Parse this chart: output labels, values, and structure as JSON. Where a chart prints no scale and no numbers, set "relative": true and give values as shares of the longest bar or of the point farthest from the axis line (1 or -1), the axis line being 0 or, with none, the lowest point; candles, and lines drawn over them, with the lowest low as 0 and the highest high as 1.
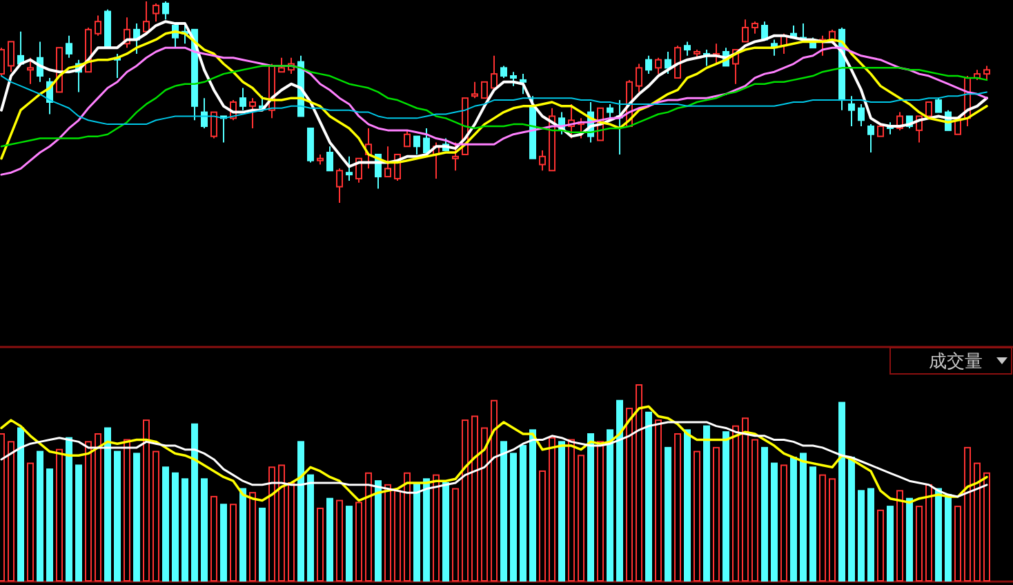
{
  "chart_data": [
    {
      "type": "candlestick",
      "relative": true,
      "categories": [
        null,
        null,
        null,
        null,
        null,
        null,
        null,
        null,
        null,
        null,
        null,
        null,
        null,
        null,
        null,
        null,
        null,
        null,
        null,
        null,
        null,
        null,
        null,
        null,
        null,
        null,
        null,
        null,
        null,
        null,
        null,
        null,
        null,
        null,
        null,
        null,
        null,
        null,
        null,
        null,
        null,
        null,
        null,
        null,
        null,
        null,
        null,
        null,
        null,
        null,
        null,
        null,
        null,
        null,
        null,
        null,
        null,
        null,
        null,
        null,
        null,
        null,
        null,
        null,
        null,
        null,
        null,
        null,
        null,
        null,
        null,
        null,
        null,
        null,
        null,
        null,
        null,
        null,
        null,
        null,
        null,
        null,
        null,
        null,
        null,
        null,
        null,
        null,
        null,
        null,
        null,
        null,
        null,
        null,
        null,
        null,
        null,
        null,
        null,
        null,
        null,
        null,
        null
      ],
      "ohlc": [
        [
          0.64,
          0.77,
          0.63,
          0.76
        ],
        [
          0.68,
          0.8,
          0.65,
          0.8
        ],
        [
          0.73,
          0.85,
          0.69,
          0.69
        ],
        [
          0.66,
          0.72,
          0.59,
          0.67
        ],
        [
          0.72,
          0.8,
          0.6,
          0.63
        ],
        [
          0.6,
          0.62,
          0.44,
          0.5
        ],
        [
          0.55,
          0.77,
          0.55,
          0.77
        ],
        [
          0.79,
          0.83,
          0.72,
          0.74
        ],
        [
          0.69,
          0.71,
          0.55,
          0.65
        ],
        [
          0.65,
          0.87,
          0.65,
          0.86
        ],
        [
          0.84,
          0.93,
          0.83,
          0.9
        ],
        [
          0.95,
          0.96,
          0.77,
          0.77
        ],
        [
          0.72,
          0.74,
          0.62,
          0.71
        ],
        [
          0.79,
          0.92,
          0.77,
          0.86
        ],
        [
          0.86,
          0.89,
          0.74,
          0.81
        ],
        [
          0.85,
          1.0,
          0.85,
          0.9
        ],
        [
          0.94,
          0.99,
          0.9,
          0.98
        ],
        [
          0.99,
          1.0,
          0.91,
          0.94
        ],
        [
          0.88,
          0.89,
          0.77,
          0.82
        ],
        [
          0.85,
          0.89,
          0.79,
          0.84
        ],
        [
          0.86,
          0.86,
          0.41,
          0.48
        ],
        [
          0.45,
          0.52,
          0.37,
          0.38
        ],
        [
          0.33,
          0.45,
          0.32,
          0.45
        ],
        [
          0.43,
          0.43,
          0.3,
          0.42
        ],
        [
          0.42,
          0.51,
          0.41,
          0.5
        ],
        [
          0.52,
          0.57,
          0.46,
          0.48
        ],
        [
          0.48,
          0.52,
          0.37,
          0.5
        ],
        [
          0.48,
          0.53,
          0.46,
          0.47
        ],
        [
          0.46,
          0.69,
          0.42,
          0.68
        ],
        [
          0.65,
          0.72,
          0.65,
          0.67
        ],
        [
          0.66,
          0.72,
          0.64,
          0.69
        ],
        [
          0.7,
          0.73,
          0.43,
          0.43
        ],
        [
          0.37,
          0.37,
          0.2,
          0.21
        ],
        [
          0.21,
          0.24,
          0.19,
          0.22
        ],
        [
          0.25,
          0.28,
          0.16,
          0.16
        ],
        [
          0.08,
          0.17,
          0.0,
          0.16
        ],
        [
          0.15,
          0.23,
          0.11,
          0.14
        ],
        [
          0.12,
          0.22,
          0.1,
          0.22
        ],
        [
          0.24,
          0.37,
          0.17,
          0.29
        ],
        [
          0.24,
          0.24,
          0.07,
          0.13
        ],
        [
          0.13,
          0.28,
          0.13,
          0.17
        ],
        [
          0.12,
          0.24,
          0.11,
          0.24
        ],
        [
          0.28,
          0.36,
          0.28,
          0.34
        ],
        [
          0.33,
          0.33,
          0.24,
          0.28
        ],
        [
          0.32,
          0.37,
          0.25,
          0.25
        ],
        [
          0.24,
          0.3,
          0.12,
          0.28
        ],
        [
          0.29,
          0.32,
          0.26,
          0.26
        ],
        [
          0.22,
          0.3,
          0.16,
          0.23
        ],
        [
          0.24,
          0.52,
          0.24,
          0.52
        ],
        [
          0.53,
          0.6,
          0.52,
          0.54
        ],
        [
          0.52,
          0.6,
          0.52,
          0.6
        ],
        [
          0.57,
          0.73,
          0.57,
          0.64
        ],
        [
          0.67,
          0.68,
          0.62,
          0.63
        ],
        [
          0.63,
          0.65,
          0.58,
          0.62
        ],
        [
          0.61,
          0.64,
          0.54,
          0.6
        ],
        [
          0.48,
          0.53,
          0.22,
          0.22
        ],
        [
          0.19,
          0.26,
          0.16,
          0.23
        ],
        [
          0.16,
          0.47,
          0.16,
          0.43
        ],
        [
          0.42,
          0.45,
          0.34,
          0.36
        ],
        [
          0.38,
          0.49,
          0.32,
          0.41
        ],
        [
          0.39,
          0.42,
          0.32,
          0.4
        ],
        [
          0.45,
          0.5,
          0.3,
          0.33
        ],
        [
          0.31,
          0.47,
          0.31,
          0.47
        ],
        [
          0.47,
          0.49,
          0.42,
          0.45
        ],
        [
          0.43,
          0.51,
          0.24,
          0.43
        ],
        [
          0.38,
          0.61,
          0.38,
          0.6
        ],
        [
          0.58,
          0.69,
          0.55,
          0.67
        ],
        [
          0.71,
          0.73,
          0.64,
          0.66
        ],
        [
          0.67,
          0.72,
          0.64,
          0.71
        ],
        [
          0.71,
          0.75,
          0.64,
          0.67
        ],
        [
          0.62,
          0.78,
          0.62,
          0.77
        ],
        [
          0.78,
          0.8,
          0.73,
          0.76
        ],
        [
          0.74,
          0.76,
          0.72,
          0.75
        ],
        [
          0.74,
          0.76,
          0.68,
          0.73
        ],
        [
          0.73,
          0.79,
          0.69,
          0.74
        ],
        [
          0.75,
          0.77,
          0.68,
          0.68
        ],
        [
          0.69,
          0.76,
          0.59,
          0.76
        ],
        [
          0.8,
          0.91,
          0.8,
          0.87
        ],
        [
          0.87,
          0.9,
          0.84,
          0.89
        ],
        [
          0.88,
          0.9,
          0.81,
          0.81
        ],
        [
          0.79,
          0.81,
          0.73,
          0.77
        ],
        [
          0.78,
          0.84,
          0.74,
          0.83
        ],
        [
          0.84,
          0.88,
          0.82,
          0.82
        ],
        [
          0.82,
          0.89,
          0.8,
          0.81
        ],
        [
          0.8,
          0.82,
          0.77,
          0.77
        ],
        [
          0.8,
          0.83,
          0.73,
          0.81
        ],
        [
          0.8,
          0.86,
          0.79,
          0.85
        ],
        [
          0.86,
          0.87,
          0.46,
          0.51
        ],
        [
          0.49,
          0.53,
          0.38,
          0.46
        ],
        [
          0.47,
          0.49,
          0.38,
          0.41
        ],
        [
          0.38,
          0.39,
          0.25,
          0.34
        ],
        [
          0.33,
          0.39,
          0.33,
          0.38
        ],
        [
          0.38,
          0.4,
          0.34,
          0.37
        ],
        [
          0.37,
          0.45,
          0.36,
          0.43
        ],
        [
          0.43,
          0.43,
          0.37,
          0.38
        ],
        [
          0.36,
          0.43,
          0.3,
          0.43
        ],
        [
          0.43,
          0.5,
          0.42,
          0.5
        ],
        [
          0.51,
          0.52,
          0.45,
          0.45
        ],
        [
          0.45,
          0.46,
          0.36,
          0.36
        ],
        [
          0.34,
          0.42,
          0.34,
          0.42
        ],
        [
          0.42,
          0.63,
          0.38,
          0.62
        ],
        [
          0.62,
          0.66,
          0.61,
          0.64
        ],
        [
          0.64,
          0.68,
          0.61,
          0.66
        ]
      ],
      "colors": [
        "#ff3232",
        "#ff3232",
        "#54ffff",
        "#ff3232",
        "#54ffff",
        "#54ffff",
        "#ff3232",
        "#54ffff",
        "#54ffff",
        "#ff3232",
        "#ff3232",
        "#54ffff",
        "#54ffff",
        "#ff3232",
        "#54ffff",
        "#ff3232",
        "#ff3232",
        "#54ffff",
        "#54ffff",
        "#54ffff",
        "#54ffff",
        "#54ffff",
        "#ff3232",
        "#54ffff",
        "#ff3232",
        "#54ffff",
        "#ff3232",
        "#54ffff",
        "#ff3232",
        "#ff3232",
        "#ff3232",
        "#54ffff",
        "#54ffff",
        "#ff3232",
        "#54ffff",
        "#ff3232",
        "#54ffff",
        "#ff3232",
        "#ff3232",
        "#54ffff",
        "#ff3232",
        "#ff3232",
        "#ff3232",
        "#54ffff",
        "#54ffff",
        "#ff3232",
        "#54ffff",
        "#ff3232",
        "#ff3232",
        "#ff3232",
        "#ff3232",
        "#ff3232",
        "#54ffff",
        "#54ffff",
        "#54ffff",
        "#54ffff",
        "#ff3232",
        "#ff3232",
        "#54ffff",
        "#ff3232",
        "#ff3232",
        "#54ffff",
        "#ff3232",
        "#54ffff",
        "#54ffff",
        "#ff3232",
        "#ff3232",
        "#54ffff",
        "#ff3232",
        "#54ffff",
        "#ff3232",
        "#54ffff",
        "#ff3232",
        "#54ffff",
        "#ff3232",
        "#54ffff",
        "#ff3232",
        "#ff3232",
        "#ff3232",
        "#54ffff",
        "#54ffff",
        "#ff3232",
        "#54ffff",
        "#54ffff",
        "#54ffff",
        "#ff3232",
        "#ff3232",
        "#54ffff",
        "#54ffff",
        "#54ffff",
        "#54ffff",
        "#ff3232",
        "#54ffff",
        "#ff3232",
        "#54ffff",
        "#ff3232",
        "#ff3232",
        "#54ffff",
        "#54ffff",
        "#ff3232",
        "#ff3232",
        "#ff3232",
        "#ff3232"
      ],
      "series": [
        {
          "type": "line",
          "color": "#ffffff",
          "values": [
            0.46,
            0.63,
            0.69,
            0.71,
            0.68,
            0.66,
            0.65,
            0.65,
            0.66,
            0.71,
            0.77,
            0.77,
            0.77,
            0.81,
            0.81,
            0.84,
            0.88,
            0.9,
            0.89,
            0.89,
            0.8,
            0.66,
            0.56,
            0.48,
            0.45,
            0.45,
            0.46,
            0.46,
            0.52,
            0.56,
            0.59,
            0.57,
            0.5,
            0.4,
            0.3,
            0.24,
            0.18,
            0.2,
            0.2,
            0.2,
            0.2,
            0.21,
            0.23,
            0.23,
            0.24,
            0.28,
            0.28,
            0.27,
            0.32,
            0.39,
            0.48,
            0.56,
            0.6,
            0.6,
            0.59,
            0.49,
            0.43,
            0.4,
            0.37,
            0.33,
            0.34,
            0.38,
            0.39,
            0.41,
            0.43,
            0.49,
            0.54,
            0.58,
            0.63,
            0.66,
            0.69,
            0.71,
            0.72,
            0.73,
            0.73,
            0.72,
            0.74,
            0.78,
            0.8,
            0.81,
            0.83,
            0.83,
            0.82,
            0.81,
            0.81,
            0.8,
            0.8,
            0.75,
            0.66,
            0.56,
            0.42,
            0.39,
            0.38,
            0.38,
            0.39,
            0.41,
            0.42,
            0.43,
            0.42,
            0.42,
            0.46,
            0.48,
            0.52
          ]
        },
        {
          "type": "line",
          "color": "#ffff00",
          "values": [
            0.22,
            0.34,
            0.46,
            0.5,
            0.54,
            0.57,
            0.63,
            0.67,
            0.68,
            0.7,
            0.71,
            0.71,
            0.72,
            0.74,
            0.77,
            0.79,
            0.81,
            0.84,
            0.85,
            0.84,
            0.8,
            0.76,
            0.74,
            0.69,
            0.65,
            0.6,
            0.57,
            0.52,
            0.51,
            0.51,
            0.52,
            0.52,
            0.5,
            0.48,
            0.43,
            0.4,
            0.37,
            0.32,
            0.24,
            0.22,
            0.2,
            0.2,
            0.21,
            0.22,
            0.23,
            0.24,
            0.25,
            0.25,
            0.29,
            0.34,
            0.39,
            0.42,
            0.45,
            0.47,
            0.48,
            0.48,
            0.49,
            0.5,
            0.48,
            0.48,
            0.45,
            0.42,
            0.4,
            0.39,
            0.37,
            0.41,
            0.46,
            0.48,
            0.51,
            0.54,
            0.56,
            0.62,
            0.64,
            0.67,
            0.69,
            0.71,
            0.74,
            0.76,
            0.77,
            0.77,
            0.77,
            0.78,
            0.79,
            0.8,
            0.8,
            0.8,
            0.81,
            0.8,
            0.74,
            0.69,
            0.64,
            0.58,
            0.55,
            0.52,
            0.49,
            0.45,
            0.42,
            0.41,
            0.4,
            0.41,
            0.42,
            0.45,
            0.48
          ]
        },
        {
          "type": "line",
          "color": "#ff80ff",
          "values": [
            0.14,
            0.15,
            0.17,
            0.21,
            0.25,
            0.28,
            0.32,
            0.37,
            0.41,
            0.47,
            0.52,
            0.57,
            0.6,
            0.65,
            0.68,
            0.72,
            0.75,
            0.77,
            0.77,
            0.77,
            0.75,
            0.74,
            0.73,
            0.72,
            0.72,
            0.71,
            0.7,
            0.69,
            0.68,
            0.68,
            0.68,
            0.67,
            0.64,
            0.59,
            0.56,
            0.52,
            0.49,
            0.43,
            0.39,
            0.37,
            0.36,
            0.36,
            0.36,
            0.35,
            0.34,
            0.32,
            0.31,
            0.29,
            0.29,
            0.29,
            0.29,
            0.29,
            0.32,
            0.34,
            0.35,
            0.36,
            0.37,
            0.38,
            0.38,
            0.39,
            0.4,
            0.4,
            0.41,
            0.42,
            0.42,
            0.45,
            0.47,
            0.48,
            0.5,
            0.51,
            0.51,
            0.52,
            0.52,
            0.52,
            0.53,
            0.54,
            0.56,
            0.58,
            0.62,
            0.64,
            0.65,
            0.67,
            0.69,
            0.72,
            0.73,
            0.76,
            0.77,
            0.77,
            0.75,
            0.73,
            0.72,
            0.71,
            0.69,
            0.67,
            0.66,
            0.64,
            0.63,
            0.61,
            0.59,
            0.57,
            0.55,
            0.54,
            0.52
          ]
        },
        {
          "type": "line",
          "color": "#00e000",
          "values": [
            0.28,
            0.29,
            0.3,
            0.31,
            0.32,
            0.32,
            0.32,
            0.32,
            0.32,
            0.33,
            0.33,
            0.34,
            0.37,
            0.4,
            0.45,
            0.49,
            0.52,
            0.56,
            0.58,
            0.59,
            0.59,
            0.6,
            0.62,
            0.64,
            0.65,
            0.66,
            0.67,
            0.68,
            0.68,
            0.68,
            0.68,
            0.67,
            0.65,
            0.64,
            0.63,
            0.61,
            0.59,
            0.58,
            0.57,
            0.55,
            0.52,
            0.51,
            0.49,
            0.47,
            0.46,
            0.43,
            0.42,
            0.4,
            0.38,
            0.37,
            0.38,
            0.38,
            0.38,
            0.39,
            0.39,
            0.38,
            0.37,
            0.36,
            0.36,
            0.35,
            0.35,
            0.35,
            0.36,
            0.37,
            0.37,
            0.38,
            0.4,
            0.42,
            0.44,
            0.45,
            0.47,
            0.48,
            0.5,
            0.51,
            0.52,
            0.54,
            0.55,
            0.57,
            0.59,
            0.59,
            0.6,
            0.6,
            0.61,
            0.62,
            0.63,
            0.65,
            0.66,
            0.67,
            0.67,
            0.67,
            0.67,
            0.67,
            0.67,
            0.67,
            0.66,
            0.66,
            0.65,
            0.64,
            0.63,
            0.63,
            0.62,
            0.62,
            0.61
          ]
        },
        {
          "type": "line",
          "color": "#00c8e8",
          "values": [
            0.63,
            0.6,
            0.58,
            0.56,
            0.54,
            0.51,
            0.49,
            0.47,
            0.43,
            0.41,
            0.4,
            0.39,
            0.39,
            0.39,
            0.39,
            0.39,
            0.41,
            0.42,
            0.43,
            0.43,
            0.43,
            0.43,
            0.43,
            0.42,
            0.43,
            0.44,
            0.45,
            0.46,
            0.47,
            0.47,
            0.48,
            0.48,
            0.47,
            0.47,
            0.46,
            0.46,
            0.46,
            0.45,
            0.45,
            0.43,
            0.42,
            0.42,
            0.42,
            0.42,
            0.43,
            0.44,
            0.44,
            0.45,
            0.46,
            0.48,
            0.49,
            0.51,
            0.51,
            0.51,
            0.52,
            0.52,
            0.52,
            0.52,
            0.52,
            0.52,
            0.51,
            0.51,
            0.5,
            0.5,
            0.49,
            0.49,
            0.49,
            0.49,
            0.49,
            0.49,
            0.49,
            0.48,
            0.48,
            0.48,
            0.48,
            0.48,
            0.48,
            0.48,
            0.48,
            0.48,
            0.48,
            0.49,
            0.5,
            0.5,
            0.51,
            0.51,
            0.51,
            0.51,
            0.51,
            0.51,
            0.5,
            0.5,
            0.5,
            0.51,
            0.51,
            0.51,
            0.52,
            0.52,
            0.53,
            0.53,
            0.54,
            0.54,
            0.55
          ]
        }
      ]
    },
    {
      "type": "bar",
      "relative": true,
      "annotations": [
        "成交量"
      ],
      "categories": [
        null,
        null,
        null,
        null,
        null,
        null,
        null,
        null,
        null,
        null,
        null,
        null,
        null,
        null,
        null,
        null,
        null,
        null,
        null,
        null,
        null,
        null,
        null,
        null,
        null,
        null,
        null,
        null,
        null,
        null,
        null,
        null,
        null,
        null,
        null,
        null,
        null,
        null,
        null,
        null,
        null,
        null,
        null,
        null,
        null,
        null,
        null,
        null,
        null,
        null,
        null,
        null,
        null,
        null,
        null,
        null,
        null,
        null,
        null,
        null,
        null,
        null,
        null,
        null,
        null,
        null,
        null,
        null,
        null,
        null,
        null,
        null,
        null,
        null,
        null,
        null,
        null,
        null,
        null,
        null,
        null,
        null,
        null,
        null,
        null,
        null,
        null,
        null,
        null,
        null,
        null,
        null,
        null,
        null,
        null,
        null,
        null,
        null,
        null,
        null,
        null,
        null,
        null
      ],
      "series": [
        {
          "values": [
            0.75,
            0.71,
            0.78,
            0.6,
            0.66,
            0.57,
            0.67,
            0.73,
            0.59,
            0.71,
            0.75,
            0.78,
            0.66,
            0.72,
            0.65,
            0.82,
            0.66,
            0.58,
            0.55,
            0.52,
            0.8,
            0.52,
            0.43,
            0.39,
            0.39,
            0.47,
            0.45,
            0.37,
            0.58,
            0.59,
            0.5,
            0.71,
            0.54,
            0.37,
            0.42,
            0.41,
            0.38,
            0.4,
            0.55,
            0.51,
            0.49,
            0.46,
            0.55,
            0.5,
            0.52,
            0.54,
            0.5,
            0.47,
            0.82,
            0.84,
            0.78,
            0.92,
            0.71,
            0.65,
            0.69,
            0.77,
            0.56,
            0.73,
            0.71,
            0.72,
            0.64,
            0.75,
            0.71,
            0.77,
            0.92,
            0.88,
            1.0,
            0.86,
            0.82,
            0.68,
            0.75,
            0.77,
            0.66,
            0.79,
            0.68,
            0.76,
            0.79,
            0.83,
            0.72,
            0.68,
            0.6,
            0.59,
            0.63,
            0.65,
            0.58,
            0.54,
            0.52,
            0.91,
            0.63,
            0.46,
            0.47,
            0.36,
            0.38,
            0.46,
            0.42,
            0.38,
            0.49,
            0.47,
            0.44,
            0.38,
            0.68,
            0.6,
            0.55
          ],
          "colors": [
            "#ff3232",
            "#ff3232",
            "#54ffff",
            "#ff3232",
            "#54ffff",
            "#54ffff",
            "#ff3232",
            "#54ffff",
            "#54ffff",
            "#ff3232",
            "#ff3232",
            "#54ffff",
            "#54ffff",
            "#ff3232",
            "#54ffff",
            "#ff3232",
            "#ff3232",
            "#54ffff",
            "#54ffff",
            "#54ffff",
            "#54ffff",
            "#54ffff",
            "#ff3232",
            "#54ffff",
            "#ff3232",
            "#54ffff",
            "#ff3232",
            "#54ffff",
            "#ff3232",
            "#ff3232",
            "#ff3232",
            "#54ffff",
            "#54ffff",
            "#ff3232",
            "#54ffff",
            "#ff3232",
            "#54ffff",
            "#ff3232",
            "#ff3232",
            "#54ffff",
            "#ff3232",
            "#ff3232",
            "#ff3232",
            "#54ffff",
            "#54ffff",
            "#ff3232",
            "#54ffff",
            "#ff3232",
            "#ff3232",
            "#ff3232",
            "#ff3232",
            "#ff3232",
            "#54ffff",
            "#54ffff",
            "#54ffff",
            "#54ffff",
            "#ff3232",
            "#ff3232",
            "#54ffff",
            "#ff3232",
            "#ff3232",
            "#54ffff",
            "#ff3232",
            "#54ffff",
            "#54ffff",
            "#ff3232",
            "#ff3232",
            "#54ffff",
            "#ff3232",
            "#54ffff",
            "#ff3232",
            "#54ffff",
            "#ff3232",
            "#54ffff",
            "#ff3232",
            "#54ffff",
            "#ff3232",
            "#ff3232",
            "#ff3232",
            "#54ffff",
            "#54ffff",
            "#ff3232",
            "#54ffff",
            "#54ffff",
            "#54ffff",
            "#ff3232",
            "#ff3232",
            "#54ffff",
            "#54ffff",
            "#54ffff",
            "#54ffff",
            "#ff3232",
            "#54ffff",
            "#ff3232",
            "#54ffff",
            "#ff3232",
            "#ff3232",
            "#54ffff",
            "#54ffff",
            "#ff3232",
            "#ff3232",
            "#ff3232",
            "#ff3232"
          ]
        },
        {
          "type": "line",
          "color": "#ffff00",
          "values": [
            0.78,
            0.82,
            0.79,
            0.74,
            0.7,
            0.66,
            0.65,
            0.64,
            0.64,
            0.65,
            0.68,
            0.71,
            0.7,
            0.71,
            0.72,
            0.72,
            0.71,
            0.68,
            0.65,
            0.64,
            0.62,
            0.59,
            0.56,
            0.53,
            0.51,
            0.44,
            0.42,
            0.41,
            0.44,
            0.48,
            0.5,
            0.53,
            0.58,
            0.56,
            0.53,
            0.51,
            0.46,
            0.41,
            0.43,
            0.45,
            0.46,
            0.47,
            0.5,
            0.5,
            0.5,
            0.51,
            0.51,
            0.52,
            0.58,
            0.63,
            0.67,
            0.77,
            0.81,
            0.78,
            0.75,
            0.75,
            0.67,
            0.68,
            0.69,
            0.69,
            0.67,
            0.71,
            0.7,
            0.71,
            0.75,
            0.82,
            0.88,
            0.89,
            0.84,
            0.83,
            0.8,
            0.75,
            0.72,
            0.72,
            0.72,
            0.72,
            0.74,
            0.76,
            0.75,
            0.72,
            0.69,
            0.65,
            0.63,
            0.61,
            0.6,
            0.59,
            0.58,
            0.64,
            0.62,
            0.59,
            0.56,
            0.46,
            0.42,
            0.41,
            0.4,
            0.42,
            0.43,
            0.44,
            0.43,
            0.43,
            0.48,
            0.5,
            0.53
          ]
        },
        {
          "type": "line",
          "color": "#ffffff",
          "values": [
            0.62,
            0.65,
            0.68,
            0.7,
            0.71,
            0.72,
            0.73,
            0.72,
            0.71,
            0.68,
            0.68,
            0.68,
            0.68,
            0.68,
            0.68,
            0.71,
            0.7,
            0.69,
            0.69,
            0.67,
            0.67,
            0.65,
            0.62,
            0.57,
            0.54,
            0.51,
            0.49,
            0.49,
            0.5,
            0.5,
            0.49,
            0.49,
            0.5,
            0.5,
            0.5,
            0.5,
            0.49,
            0.49,
            0.49,
            0.48,
            0.47,
            0.46,
            0.45,
            0.45,
            0.47,
            0.48,
            0.49,
            0.5,
            0.54,
            0.56,
            0.58,
            0.63,
            0.65,
            0.67,
            0.7,
            0.72,
            0.72,
            0.74,
            0.73,
            0.71,
            0.7,
            0.69,
            0.69,
            0.7,
            0.72,
            0.74,
            0.77,
            0.79,
            0.8,
            0.81,
            0.81,
            0.81,
            0.81,
            0.81,
            0.79,
            0.78,
            0.76,
            0.75,
            0.74,
            0.74,
            0.72,
            0.72,
            0.71,
            0.69,
            0.69,
            0.68,
            0.66,
            0.64,
            0.63,
            0.61,
            0.59,
            0.57,
            0.55,
            0.53,
            0.51,
            0.5,
            0.49,
            0.46,
            0.44,
            0.43,
            0.45,
            0.47,
            0.49
          ]
        }
      ]
    }
  ]
}
